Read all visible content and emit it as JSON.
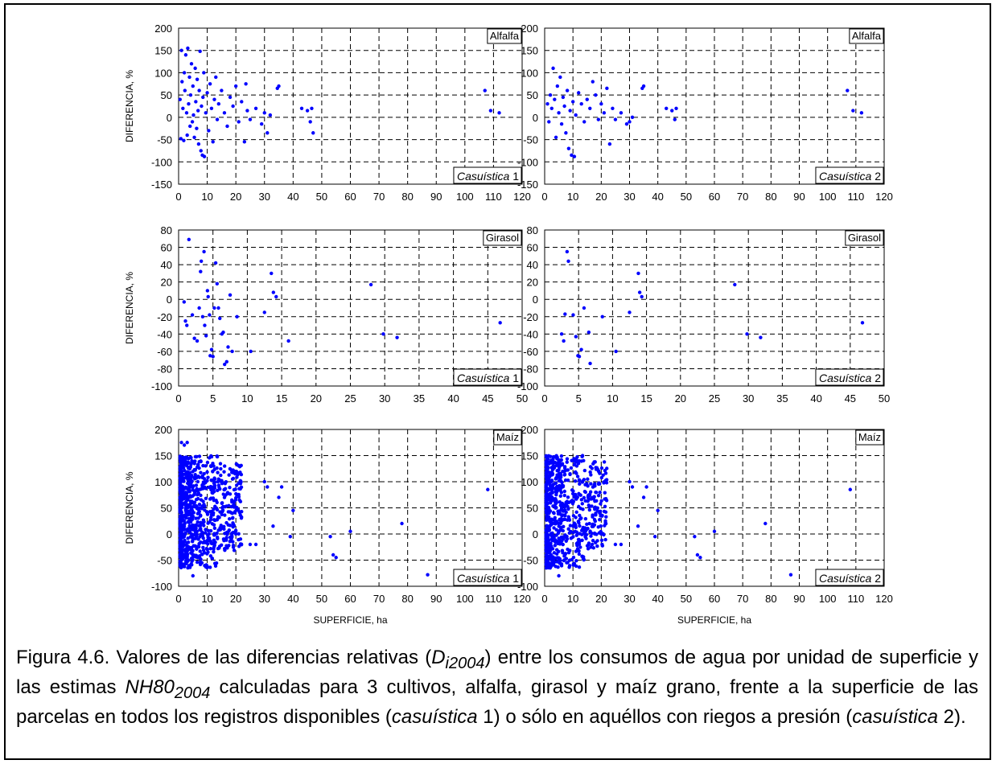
{
  "chart_data": [
    {
      "type": "scatter",
      "crop": "Alfalfa",
      "case_label": "Casuística",
      "case_number": "1",
      "ylabel": "DIFERENCIA, %",
      "xlabel": "",
      "xlim": [
        0,
        120
      ],
      "ylim": [
        -150,
        200
      ],
      "xticks": [
        0,
        10,
        20,
        30,
        40,
        50,
        60,
        70,
        80,
        90,
        100,
        110,
        120
      ],
      "yticks": [
        -150,
        -100,
        -50,
        0,
        50,
        100,
        150,
        200
      ],
      "grid": "dashed",
      "color": "#0000ff",
      "points": [
        [
          0.5,
          40
        ],
        [
          0.8,
          -48
        ],
        [
          1,
          150
        ],
        [
          1.2,
          80
        ],
        [
          1.5,
          20
        ],
        [
          1.8,
          -52
        ],
        [
          2,
          100
        ],
        [
          2.2,
          60
        ],
        [
          2.5,
          140
        ],
        [
          2.8,
          10
        ],
        [
          3,
          -40
        ],
        [
          3.2,
          155
        ],
        [
          3.5,
          30
        ],
        [
          3.8,
          90
        ],
        [
          4,
          -20
        ],
        [
          4.2,
          50
        ],
        [
          4.5,
          120
        ],
        [
          4.8,
          -10
        ],
        [
          5,
          70
        ],
        [
          5.2,
          5
        ],
        [
          5.5,
          -45
        ],
        [
          5.8,
          110
        ],
        [
          6,
          35
        ],
        [
          6.3,
          -25
        ],
        [
          6.5,
          85
        ],
        [
          6.8,
          15
        ],
        [
          7,
          -60
        ],
        [
          7.2,
          60
        ],
        [
          7.5,
          148
        ],
        [
          7.8,
          -75
        ],
        [
          8,
          25
        ],
        [
          8.3,
          -85
        ],
        [
          8.5,
          45
        ],
        [
          8.8,
          100
        ],
        [
          9,
          -88
        ],
        [
          9.5,
          10
        ],
        [
          10,
          55
        ],
        [
          10.5,
          -30
        ],
        [
          11,
          75
        ],
        [
          11.5,
          20
        ],
        [
          12,
          -55
        ],
        [
          12.5,
          40
        ],
        [
          13,
          90
        ],
        [
          13.5,
          -5
        ],
        [
          14,
          30
        ],
        [
          15,
          60
        ],
        [
          16,
          10
        ],
        [
          17,
          -20
        ],
        [
          18,
          45
        ],
        [
          19,
          25
        ],
        [
          20,
          70
        ],
        [
          21,
          -10
        ],
        [
          22,
          35
        ],
        [
          23,
          -55
        ],
        [
          23.5,
          75
        ],
        [
          24,
          15
        ],
        [
          25,
          -5
        ],
        [
          27,
          20
        ],
        [
          29,
          -15
        ],
        [
          30,
          10
        ],
        [
          31,
          -35
        ],
        [
          32,
          5
        ],
        [
          34.5,
          65
        ],
        [
          35,
          70
        ],
        [
          43,
          20
        ],
        [
          45,
          15
        ],
        [
          46,
          -10
        ],
        [
          46.5,
          20
        ],
        [
          47,
          -35
        ],
        [
          107,
          60
        ],
        [
          109,
          15
        ],
        [
          112,
          10
        ]
      ]
    },
    {
      "type": "scatter",
      "crop": "Alfalfa",
      "case_label": "Casuística",
      "case_number": "2",
      "ylabel": "",
      "xlabel": "",
      "xlim": [
        0,
        120
      ],
      "ylim": [
        -150,
        200
      ],
      "xticks": [
        0,
        10,
        20,
        30,
        40,
        50,
        60,
        70,
        80,
        90,
        100,
        110,
        120
      ],
      "yticks": [
        -150,
        -100,
        -50,
        0,
        50,
        100,
        150,
        200
      ],
      "grid": "dashed",
      "color": "#0000ff",
      "points": [
        [
          1,
          30
        ],
        [
          1.5,
          -10
        ],
        [
          2,
          50
        ],
        [
          2.5,
          20
        ],
        [
          3,
          110
        ],
        [
          3.5,
          40
        ],
        [
          4,
          -45
        ],
        [
          4.5,
          70
        ],
        [
          5,
          10
        ],
        [
          5.5,
          90
        ],
        [
          6,
          -15
        ],
        [
          6.5,
          45
        ],
        [
          7,
          25
        ],
        [
          7.5,
          -35
        ],
        [
          8,
          60
        ],
        [
          8.5,
          -70
        ],
        [
          9,
          15
        ],
        [
          9.5,
          -85
        ],
        [
          10,
          35
        ],
        [
          10.5,
          -88
        ],
        [
          11,
          5
        ],
        [
          12,
          55
        ],
        [
          13,
          30
        ],
        [
          14,
          -10
        ],
        [
          15,
          40
        ],
        [
          16,
          20
        ],
        [
          17,
          80
        ],
        [
          18,
          50
        ],
        [
          19,
          -5
        ],
        [
          20,
          30
        ],
        [
          21,
          10
        ],
        [
          22,
          65
        ],
        [
          23,
          -60
        ],
        [
          24,
          20
        ],
        [
          25,
          -5
        ],
        [
          27,
          10
        ],
        [
          29,
          -15
        ],
        [
          30,
          -10
        ],
        [
          31,
          0
        ],
        [
          34.5,
          65
        ],
        [
          35,
          70
        ],
        [
          43,
          20
        ],
        [
          45,
          15
        ],
        [
          46,
          -5
        ],
        [
          46.5,
          20
        ],
        [
          107,
          60
        ],
        [
          109,
          15
        ],
        [
          112,
          10
        ]
      ]
    },
    {
      "type": "scatter",
      "crop": "Girasol",
      "case_label": "Casuística",
      "case_number": "1",
      "ylabel": "DIFERENCIA, %",
      "xlabel": "",
      "xlim": [
        0,
        50
      ],
      "ylim": [
        -100,
        80
      ],
      "xticks": [
        0,
        5,
        10,
        15,
        20,
        25,
        30,
        35,
        40,
        45,
        50
      ],
      "yticks": [
        -100,
        -80,
        -60,
        -40,
        -20,
        0,
        20,
        40,
        60,
        80
      ],
      "grid": "dashed",
      "color": "#0000ff",
      "points": [
        [
          0.8,
          -3
        ],
        [
          1,
          -25
        ],
        [
          1.2,
          -30
        ],
        [
          1.5,
          69
        ],
        [
          2,
          -18
        ],
        [
          2.3,
          -45
        ],
        [
          2.7,
          -48
        ],
        [
          3,
          -10
        ],
        [
          3.2,
          32
        ],
        [
          3.3,
          44
        ],
        [
          3.5,
          -20
        ],
        [
          3.7,
          55
        ],
        [
          3.8,
          -30
        ],
        [
          4,
          -42
        ],
        [
          4.2,
          10
        ],
        [
          4.3,
          3
        ],
        [
          4.5,
          -18
        ],
        [
          4.6,
          -65
        ],
        [
          4.8,
          -58
        ],
        [
          5,
          -66
        ],
        [
          5.2,
          -10
        ],
        [
          5.4,
          42
        ],
        [
          5.6,
          18
        ],
        [
          5.8,
          -10
        ],
        [
          6,
          -22
        ],
        [
          6.3,
          -40
        ],
        [
          6.5,
          -38
        ],
        [
          6.7,
          -75
        ],
        [
          7,
          -72
        ],
        [
          7.2,
          -55
        ],
        [
          7.5,
          5
        ],
        [
          7.8,
          -60
        ],
        [
          8.5,
          -20
        ],
        [
          10.5,
          -60
        ],
        [
          12.5,
          -15
        ],
        [
          13.5,
          30
        ],
        [
          13.8,
          8
        ],
        [
          14.2,
          3
        ],
        [
          16,
          -48
        ],
        [
          28,
          17
        ],
        [
          29.8,
          -40
        ],
        [
          31.8,
          -44
        ],
        [
          46.8,
          -27
        ]
      ]
    },
    {
      "type": "scatter",
      "crop": "Girasol",
      "case_label": "Casuística",
      "case_number": "2",
      "ylabel": "",
      "xlabel": "",
      "xlim": [
        0,
        50
      ],
      "ylim": [
        -100,
        80
      ],
      "xticks": [
        0,
        5,
        10,
        15,
        20,
        25,
        30,
        35,
        40,
        45,
        50
      ],
      "yticks": [
        -100,
        -80,
        -60,
        -40,
        -20,
        0,
        20,
        40,
        60,
        80
      ],
      "grid": "dashed",
      "color": "#0000ff",
      "points": [
        [
          2.5,
          -40
        ],
        [
          2.8,
          -48
        ],
        [
          3,
          -17
        ],
        [
          3.3,
          55
        ],
        [
          3.5,
          44
        ],
        [
          4.2,
          -18
        ],
        [
          4.6,
          -43
        ],
        [
          4.9,
          -65
        ],
        [
          5.1,
          -66
        ],
        [
          5.4,
          -58
        ],
        [
          5.8,
          -10
        ],
        [
          6.5,
          -38
        ],
        [
          6.7,
          -74
        ],
        [
          8.5,
          -20
        ],
        [
          10.5,
          -60
        ],
        [
          12.5,
          -15
        ],
        [
          13.8,
          30
        ],
        [
          14,
          8
        ],
        [
          14.3,
          3
        ],
        [
          28,
          17
        ],
        [
          29.8,
          -40
        ],
        [
          31.8,
          -44
        ],
        [
          46.8,
          -27
        ]
      ]
    },
    {
      "type": "scatter",
      "crop": "Maíz",
      "case_label": "Casuística",
      "case_number": "1",
      "ylabel": "DIFERENCIA, %",
      "xlabel": "SUPERFICIE, ha",
      "xlim": [
        0,
        120
      ],
      "ylim": [
        -100,
        200
      ],
      "xticks": [
        0,
        10,
        20,
        30,
        40,
        50,
        60,
        70,
        80,
        90,
        100,
        110,
        120
      ],
      "yticks": [
        -100,
        -50,
        0,
        50,
        100,
        150,
        200
      ],
      "grid": "dashed",
      "color": "#0000ff",
      "points": [
        [
          1,
          175
        ],
        [
          2,
          170
        ],
        [
          3,
          175
        ],
        [
          5,
          -80
        ],
        [
          20,
          0
        ],
        [
          25,
          -20
        ],
        [
          27,
          -20
        ],
        [
          30,
          100
        ],
        [
          31,
          90
        ],
        [
          33,
          15
        ],
        [
          35,
          70
        ],
        [
          36,
          90
        ],
        [
          39,
          -5
        ],
        [
          40,
          45
        ],
        [
          53,
          -5
        ],
        [
          54,
          -40
        ],
        [
          55,
          -45
        ],
        [
          60,
          5
        ],
        [
          78,
          20
        ],
        [
          87,
          -78
        ],
        [
          108,
          85
        ]
      ],
      "cluster": {
        "x_range": [
          0.5,
          22
        ],
        "y_range": [
          -65,
          150
        ],
        "count": 900
      }
    },
    {
      "type": "scatter",
      "crop": "Maíz",
      "case_label": "Casuística",
      "case_number": "2",
      "ylabel": "",
      "xlabel": "SUPERFICIE, ha",
      "xlim": [
        0,
        120
      ],
      "ylim": [
        -100,
        200
      ],
      "xticks": [
        0,
        10,
        20,
        30,
        40,
        50,
        60,
        70,
        80,
        90,
        100,
        110,
        120
      ],
      "yticks": [
        -100,
        -50,
        0,
        50,
        100,
        150,
        200
      ],
      "grid": "dashed",
      "color": "#0000ff",
      "points": [
        [
          5,
          -80
        ],
        [
          20,
          0
        ],
        [
          25,
          -20
        ],
        [
          27,
          -20
        ],
        [
          30,
          100
        ],
        [
          31,
          90
        ],
        [
          33,
          15
        ],
        [
          35,
          70
        ],
        [
          36,
          90
        ],
        [
          39,
          -5
        ],
        [
          40,
          45
        ],
        [
          53,
          -5
        ],
        [
          54,
          -40
        ],
        [
          55,
          -45
        ],
        [
          60,
          5
        ],
        [
          78,
          20
        ],
        [
          87,
          -78
        ],
        [
          108,
          85
        ]
      ],
      "cluster": {
        "x_range": [
          0.5,
          22
        ],
        "y_range": [
          -65,
          150
        ],
        "count": 750
      }
    }
  ],
  "caption": {
    "prefix": "Figura 4.6. Valores de las diferencias relativas (",
    "sym1": "D",
    "sym1_sub": "i2004",
    "mid1": ") entre los consumos de agua por unidad de superficie y las estimas ",
    "sym2": "NH80",
    "sym2_sub": "2004",
    "mid2": " calculadas para 3 cultivos, alfalfa, girasol y maíz grano, frente a la superficie de las parcelas en todos los registros disponibles (",
    "case1": "casuística",
    "mid3": " 1) o sólo en aquéllos con riegos a presión (",
    "case2": "casuística",
    "end": " 2)."
  }
}
